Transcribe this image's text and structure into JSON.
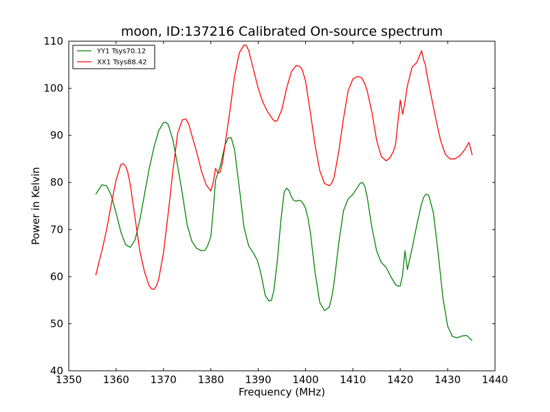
{
  "chart_data": {
    "type": "line",
    "title": "moon, ID:137216 Calibrated On-source spectrum",
    "xlabel": "Frequency (MHz)",
    "ylabel": "Power in Kelvin",
    "xlim": [
      1350,
      1440
    ],
    "ylim": [
      40,
      110
    ],
    "xticks": [
      1350,
      1360,
      1370,
      1380,
      1390,
      1400,
      1410,
      1420,
      1430,
      1440
    ],
    "yticks": [
      40,
      50,
      60,
      70,
      80,
      90,
      100,
      110
    ],
    "grid": false,
    "legend_position": "top-left",
    "series": [
      {
        "name": "YY1 Tsys70.12",
        "color": "#008000",
        "x": [
          1355.7,
          1357.0,
          1358.0,
          1359.0,
          1360.0,
          1361.0,
          1362.0,
          1363.0,
          1364.0,
          1365.0,
          1366.0,
          1367.0,
          1368.0,
          1369.0,
          1370.0,
          1370.5,
          1371.0,
          1372.0,
          1373.0,
          1374.0,
          1375.0,
          1376.0,
          1377.0,
          1378.0,
          1378.8,
          1379.3,
          1380.0,
          1380.5,
          1381.0,
          1382.0,
          1383.0,
          1383.7,
          1384.3,
          1385.0,
          1386.0,
          1387.0,
          1388.0,
          1389.0,
          1389.8,
          1390.5,
          1391.5,
          1392.3,
          1392.8,
          1393.3,
          1394.0,
          1394.8,
          1395.5,
          1396.0,
          1396.5,
          1397.0,
          1397.5,
          1398.0,
          1398.5,
          1399.0,
          1399.5,
          1400.0,
          1400.5,
          1401.0,
          1402.0,
          1403.0,
          1404.0,
          1405.0,
          1405.5,
          1406.0,
          1407.0,
          1408.0,
          1409.0,
          1409.5,
          1410.0,
          1411.0,
          1411.5,
          1412.0,
          1412.5,
          1413.0,
          1414.0,
          1415.0,
          1416.0,
          1417.0,
          1418.0,
          1419.0,
          1419.5,
          1420.0,
          1420.5,
          1421.0,
          1421.5,
          1422.5,
          1423.5,
          1424.5,
          1425.0,
          1425.5,
          1426.0,
          1427.0,
          1428.0,
          1429.0,
          1430.0,
          1431.0,
          1432.0,
          1433.0,
          1434.0,
          1435.2
        ],
        "y": [
          77.5,
          79.5,
          79.3,
          77.2,
          73.5,
          69.5,
          66.8,
          66.2,
          67.8,
          72.0,
          77.5,
          83.0,
          87.5,
          91.0,
          92.7,
          92.8,
          92.3,
          89.0,
          83.5,
          77.5,
          71.0,
          67.5,
          66.0,
          65.5,
          65.6,
          66.5,
          68.5,
          74.0,
          80.5,
          83.5,
          88.0,
          89.5,
          89.5,
          87.0,
          79.0,
          70.5,
          66.5,
          65.0,
          63.5,
          61.0,
          56.0,
          54.8,
          55.0,
          57.0,
          63.0,
          72.0,
          78.0,
          78.8,
          78.3,
          77.0,
          76.2,
          76.0,
          76.2,
          76.1,
          75.5,
          74.5,
          72.5,
          69.5,
          61.0,
          54.5,
          52.8,
          53.5,
          55.5,
          58.5,
          67.0,
          74.0,
          76.5,
          77.0,
          77.5,
          79.0,
          79.8,
          80.0,
          79.2,
          77.0,
          70.5,
          65.5,
          63.0,
          62.0,
          60.0,
          58.3,
          58.0,
          58.0,
          60.5,
          65.5,
          61.5,
          66.0,
          71.0,
          75.5,
          77.0,
          77.5,
          77.3,
          73.5,
          65.0,
          55.5,
          49.5,
          47.3,
          47.0,
          47.4,
          47.5,
          46.4
        ]
      },
      {
        "name": "XX1 Tsys88.42",
        "color": "#ff0000",
        "x": [
          1355.7,
          1357.0,
          1358.0,
          1359.0,
          1360.0,
          1361.0,
          1361.5,
          1362.0,
          1362.5,
          1363.0,
          1364.0,
          1365.0,
          1366.0,
          1367.0,
          1367.5,
          1368.0,
          1368.5,
          1369.0,
          1370.0,
          1371.0,
          1372.0,
          1373.0,
          1374.0,
          1374.7,
          1375.3,
          1376.0,
          1377.0,
          1378.0,
          1379.0,
          1380.0,
          1380.5,
          1381.0,
          1381.5,
          1382.0,
          1382.5,
          1383.0,
          1384.0,
          1385.0,
          1386.0,
          1387.0,
          1387.5,
          1388.0,
          1389.0,
          1390.0,
          1391.0,
          1392.0,
          1393.0,
          1393.5,
          1394.0,
          1395.0,
          1396.0,
          1397.0,
          1398.0,
          1398.7,
          1399.3,
          1400.0,
          1401.0,
          1402.0,
          1403.0,
          1404.0,
          1405.0,
          1405.5,
          1406.0,
          1407.0,
          1408.0,
          1409.0,
          1410.0,
          1411.0,
          1411.8,
          1412.5,
          1413.0,
          1414.0,
          1415.0,
          1416.0,
          1417.0,
          1417.8,
          1418.5,
          1419.0,
          1420.0,
          1420.5,
          1420.9,
          1421.5,
          1422.5,
          1423.5,
          1424.5,
          1425.0,
          1425.3,
          1425.6,
          1426.5,
          1427.5,
          1428.5,
          1429.5,
          1430.5,
          1431.5,
          1432.5,
          1433.5,
          1434.5,
          1435.2
        ],
        "y": [
          60.3,
          65.5,
          70.0,
          75.5,
          80.5,
          83.8,
          84.0,
          83.5,
          82.0,
          79.5,
          72.5,
          65.5,
          61.0,
          58.0,
          57.4,
          57.3,
          58.0,
          59.5,
          65.0,
          73.5,
          82.5,
          90.5,
          93.3,
          93.5,
          92.5,
          90.0,
          86.5,
          82.5,
          79.5,
          78.2,
          80.0,
          83.0,
          82.0,
          82.2,
          84.5,
          88.0,
          95.0,
          102.5,
          107.5,
          109.2,
          109.1,
          108.0,
          104.0,
          100.0,
          97.0,
          95.0,
          93.5,
          93.0,
          93.1,
          95.5,
          100.0,
          103.5,
          104.8,
          104.7,
          104.0,
          101.5,
          95.0,
          88.0,
          82.5,
          79.8,
          79.3,
          79.8,
          81.0,
          86.5,
          93.5,
          99.5,
          102.0,
          102.5,
          102.3,
          101.0,
          99.5,
          95.0,
          89.0,
          85.5,
          84.6,
          85.2,
          86.5,
          88.0,
          97.5,
          94.5,
          96.5,
          100.5,
          104.5,
          105.5,
          108.0,
          105.8,
          105.0,
          103.0,
          98.5,
          93.5,
          89.0,
          86.0,
          85.0,
          85.0,
          85.6,
          86.8,
          88.5,
          85.8
        ]
      }
    ]
  }
}
